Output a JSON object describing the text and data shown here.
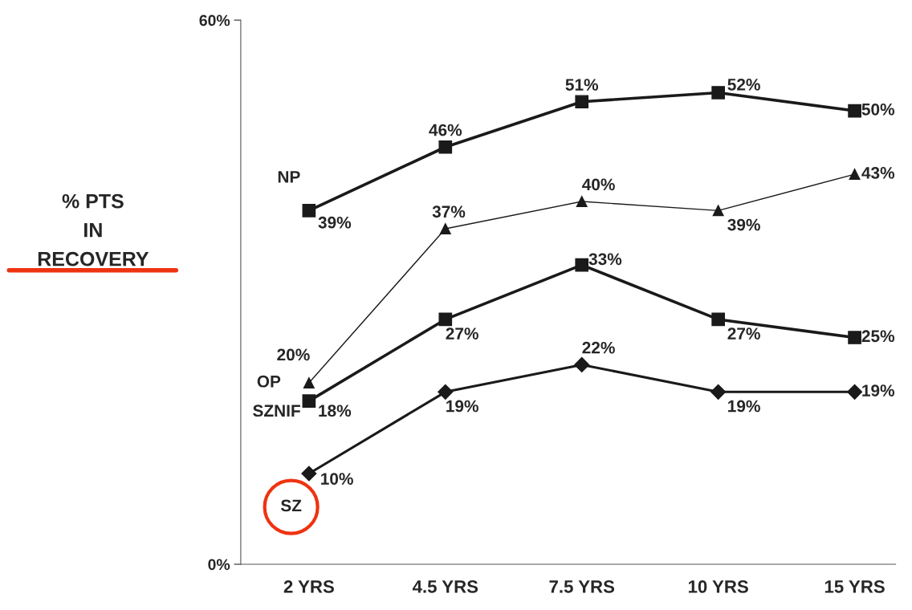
{
  "chart_data": {
    "type": "line",
    "ylabel": "% PTS\nIN\nRECOVERY",
    "categories": [
      "2 YRS",
      "4.5 YRS",
      "7.5 YRS",
      "10 YRS",
      "15 YRS"
    ],
    "ylim": [
      0,
      60
    ],
    "yticks": [
      {
        "value": 0,
        "label": "0%"
      },
      {
        "value": 60,
        "label": "60%"
      }
    ],
    "grid": false,
    "legend": false,
    "series": [
      {
        "name": "NP",
        "color": "#1a1a1a",
        "marker": "square",
        "values": [
          39,
          46,
          51,
          52,
          50
        ],
        "value_labels": [
          "39%",
          "46%",
          "51%",
          "52%",
          "50%"
        ]
      },
      {
        "name": "OP",
        "color": "#1a1a1a",
        "marker": "triangle",
        "values": [
          20,
          37,
          40,
          39,
          43
        ],
        "value_labels": [
          "20%",
          "37%",
          "40%",
          "39%",
          "43%"
        ]
      },
      {
        "name": "SZNIF",
        "color": "#1a1a1a",
        "marker": "square",
        "values": [
          18,
          27,
          33,
          27,
          25
        ],
        "value_labels": [
          "18%",
          "27%",
          "33%",
          "27%",
          "25%"
        ]
      },
      {
        "name": "SZ",
        "color": "#1a1a1a",
        "marker": "diamond",
        "values": [
          10,
          19,
          22,
          19,
          19
        ],
        "value_labels": [
          "10%",
          "19%",
          "22%",
          "19%",
          "19%"
        ]
      }
    ]
  }
}
